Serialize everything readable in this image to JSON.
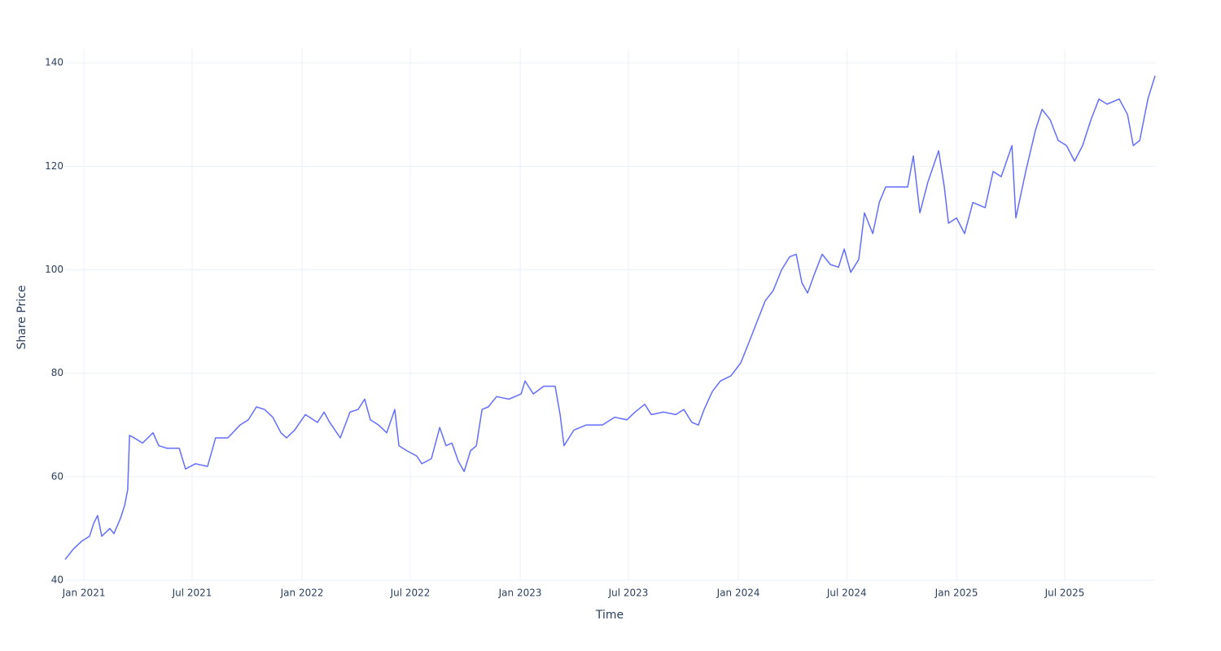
{
  "chart_data": {
    "type": "line",
    "x_label": "Time",
    "y_label": "Share Price",
    "color": "#636efa",
    "grid": true,
    "xlim": [
      2020.914,
      2025.91
    ],
    "ylim": [
      40,
      142.7
    ],
    "xticks": [
      {
        "value": 2021,
        "label": "Jan 2021"
      },
      {
        "value": 2021.496,
        "label": "Jul 2021"
      },
      {
        "value": 2022,
        "label": "Jan 2022"
      },
      {
        "value": 2022.496,
        "label": "Jul 2022"
      },
      {
        "value": 2023,
        "label": "Jan 2023"
      },
      {
        "value": 2023.496,
        "label": "Jul 2023"
      },
      {
        "value": 2024,
        "label": "Jan 2024"
      },
      {
        "value": 2024.497,
        "label": "Jul 2024"
      },
      {
        "value": 2025,
        "label": "Jan 2025"
      },
      {
        "value": 2025.496,
        "label": "Jul 2025"
      }
    ],
    "yticks": [
      40,
      60,
      80,
      100,
      120,
      140
    ],
    "x": [
      2020.914,
      2020.951,
      2020.989,
      2021.026,
      2021.045,
      2021.063,
      2021.082,
      2021.119,
      2021.138,
      2021.168,
      2021.187,
      2021.201,
      2021.209,
      2021.231,
      2021.269,
      2021.317,
      2021.343,
      2021.381,
      2021.437,
      2021.466,
      2021.511,
      2021.567,
      2021.604,
      2021.66,
      2021.716,
      2021.754,
      2021.791,
      2021.828,
      2021.866,
      2021.903,
      2021.929,
      2021.966,
      2022.015,
      2022.071,
      2022.101,
      2022.127,
      2022.175,
      2022.22,
      2022.257,
      2022.287,
      2022.313,
      2022.351,
      2022.388,
      2022.425,
      2022.444,
      2022.481,
      2022.526,
      2022.549,
      2022.593,
      2022.631,
      2022.66,
      2022.687,
      2022.716,
      2022.743,
      2022.772,
      2022.799,
      2022.825,
      2022.854,
      2022.892,
      2022.948,
      2023.004,
      2023.022,
      2023.06,
      2023.108,
      2023.16,
      2023.183,
      2023.201,
      2023.246,
      2023.302,
      2023.377,
      2023.433,
      2023.489,
      2023.526,
      2023.571,
      2023.601,
      2023.657,
      2023.713,
      2023.75,
      2023.787,
      2023.817,
      2023.843,
      2023.881,
      2023.918,
      2023.966,
      2024.011,
      2024.049,
      2024.086,
      2024.123,
      2024.16,
      2024.198,
      2024.235,
      2024.265,
      2024.291,
      2024.317,
      2024.347,
      2024.384,
      2024.422,
      2024.459,
      2024.485,
      2024.515,
      2024.552,
      2024.578,
      2024.616,
      2024.646,
      2024.675,
      2024.72,
      2024.776,
      2024.802,
      2024.832,
      2024.869,
      2024.918,
      2024.944,
      2024.963,
      2025.0,
      2025.037,
      2025.075,
      2025.131,
      2025.168,
      2025.205,
      2025.254,
      2025.272,
      2025.317,
      2025.362,
      2025.392,
      2025.429,
      2025.466,
      2025.504,
      2025.541,
      2025.578,
      2025.616,
      2025.653,
      2025.69,
      2025.746,
      2025.784,
      2025.81,
      2025.84,
      2025.877,
      2025.91
    ],
    "values": [
      44,
      46,
      47.5,
      48.5,
      51,
      52.5,
      48.5,
      50,
      49,
      52,
      54.5,
      57.5,
      68,
      67.5,
      66.5,
      68.5,
      66,
      65.5,
      65.5,
      61.5,
      62.5,
      62,
      67.5,
      67.5,
      70,
      71,
      73.5,
      73,
      71.5,
      68.5,
      67.5,
      69,
      72,
      70.5,
      72.5,
      70.5,
      67.5,
      72.5,
      73,
      75,
      71,
      70,
      68.5,
      73,
      66,
      65,
      64,
      62.5,
      63.5,
      69.5,
      66,
      66.5,
      63,
      61,
      65,
      66,
      73,
      73.5,
      75.5,
      75,
      76,
      78.5,
      76,
      77.5,
      77.5,
      72,
      66,
      69,
      70,
      70,
      71.5,
      71,
      72.5,
      74,
      72,
      72.5,
      72,
      73,
      70.5,
      70,
      73,
      76.5,
      78.5,
      79.5,
      82,
      86,
      90,
      94,
      96,
      100,
      102.5,
      103,
      97.5,
      95.5,
      99,
      103,
      101,
      100.5,
      104,
      99.5,
      102,
      111,
      107,
      113,
      116,
      116,
      116,
      122,
      111,
      117,
      123,
      116,
      109,
      110,
      107,
      113,
      112,
      119,
      118,
      124,
      110,
      119,
      127,
      131,
      129,
      125,
      124,
      121,
      124,
      129,
      133,
      132,
      133,
      130,
      124,
      125,
      133,
      137.5
    ]
  }
}
